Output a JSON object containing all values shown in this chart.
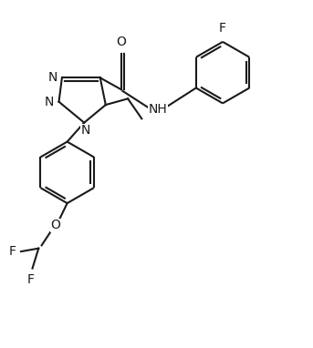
{
  "bg_color": "#ffffff",
  "line_color": "#1a1a1a",
  "line_width": 1.5,
  "font_size": 10,
  "figsize": [
    3.43,
    3.82
  ],
  "dpi": 100,
  "xlim": [
    0,
    10
  ],
  "ylim": [
    0,
    11.1
  ]
}
